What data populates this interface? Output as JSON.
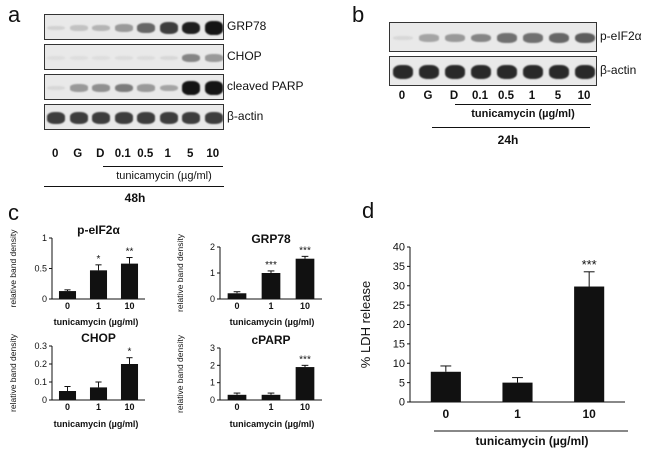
{
  "panel_a": {
    "label": "a",
    "strips": [
      "GRP78",
      "CHOP",
      "cleaved PARP",
      "β-actin"
    ],
    "lanes": [
      "0",
      "G",
      "D",
      "0.1",
      "0.5",
      "1",
      "5",
      "10"
    ],
    "treatment": "tunicamycin (µg/ml)",
    "time": "48h",
    "intensity": [
      [
        0.08,
        0.15,
        0.22,
        0.35,
        0.6,
        0.8,
        0.95,
        1.0
      ],
      [
        0.02,
        0.02,
        0.02,
        0.03,
        0.03,
        0.05,
        0.45,
        0.35
      ],
      [
        0.05,
        0.35,
        0.4,
        0.5,
        0.35,
        0.3,
        1.0,
        1.0
      ],
      [
        0.8,
        0.8,
        0.8,
        0.8,
        0.8,
        0.8,
        0.8,
        0.8
      ]
    ]
  },
  "panel_b": {
    "label": "b",
    "strips": [
      "p-eIF2α",
      "β-actin"
    ],
    "lanes": [
      "0",
      "G",
      "D",
      "0.1",
      "0.5",
      "1",
      "5",
      "10"
    ],
    "treatment": "tunicamycin (µg/ml)",
    "time": "24h",
    "intensity": [
      [
        0.05,
        0.3,
        0.35,
        0.45,
        0.55,
        0.55,
        0.6,
        0.65
      ],
      [
        0.9,
        0.9,
        0.9,
        0.9,
        0.9,
        0.9,
        0.9,
        0.9
      ]
    ]
  },
  "panel_c": {
    "label": "c"
  },
  "panel_d": {
    "label": "d"
  },
  "chart_data": [
    {
      "type": "bar",
      "title": "p-eIF2α",
      "categories": [
        "0",
        "1",
        "10"
      ],
      "values": [
        0.13,
        0.47,
        0.58
      ],
      "errors": [
        0.02,
        0.09,
        0.1
      ],
      "significance": [
        "",
        "*",
        "**"
      ],
      "ylabel": "relative band density",
      "xlabel": "tunicamycin (µg/ml)",
      "ylim": [
        0,
        1
      ],
      "yticks": [
        "0",
        "0.5",
        "1"
      ]
    },
    {
      "type": "bar",
      "title": "GRP78",
      "categories": [
        "0",
        "1",
        "10"
      ],
      "values": [
        0.22,
        1.0,
        1.55
      ],
      "errors": [
        0.06,
        0.08,
        0.09
      ],
      "significance": [
        "",
        "***",
        "***"
      ],
      "ylabel": "relative band density",
      "xlabel": "tunicamycin (µg/ml)",
      "ylim": [
        0,
        2
      ],
      "yticks": [
        "0",
        "1",
        "2"
      ]
    },
    {
      "type": "bar",
      "title": "CHOP",
      "categories": [
        "0",
        "1",
        "10"
      ],
      "values": [
        0.05,
        0.07,
        0.2
      ],
      "errors": [
        0.025,
        0.03,
        0.035
      ],
      "significance": [
        "",
        "",
        "*"
      ],
      "ylabel": "relative band density",
      "xlabel": "tunicamycin (µg/ml)",
      "ylim": [
        0,
        0.3
      ],
      "yticks": [
        "0",
        "0.1",
        "0.2",
        "0.3"
      ]
    },
    {
      "type": "bar",
      "title": "cPARP",
      "categories": [
        "0",
        "1",
        "10"
      ],
      "values": [
        0.3,
        0.3,
        1.9
      ],
      "errors": [
        0.1,
        0.1,
        0.1
      ],
      "significance": [
        "",
        "",
        "***"
      ],
      "ylabel": "relative band density",
      "xlabel": "tunicamycin (µg/ml)",
      "ylim": [
        0,
        3
      ],
      "yticks": [
        "0",
        "1",
        "2",
        "3"
      ]
    },
    {
      "type": "bar",
      "title": "",
      "categories": [
        "0",
        "1",
        "10"
      ],
      "values": [
        7.8,
        5.0,
        29.8
      ],
      "errors": [
        1.5,
        1.3,
        3.8
      ],
      "significance": [
        "",
        "",
        "***"
      ],
      "ylabel": "% LDH release",
      "xlabel": "tunicamycin (µg/ml)",
      "ylim": [
        0,
        40
      ],
      "yticks": [
        "0",
        "5",
        "10",
        "15",
        "20",
        "25",
        "30",
        "35",
        "40"
      ]
    }
  ]
}
